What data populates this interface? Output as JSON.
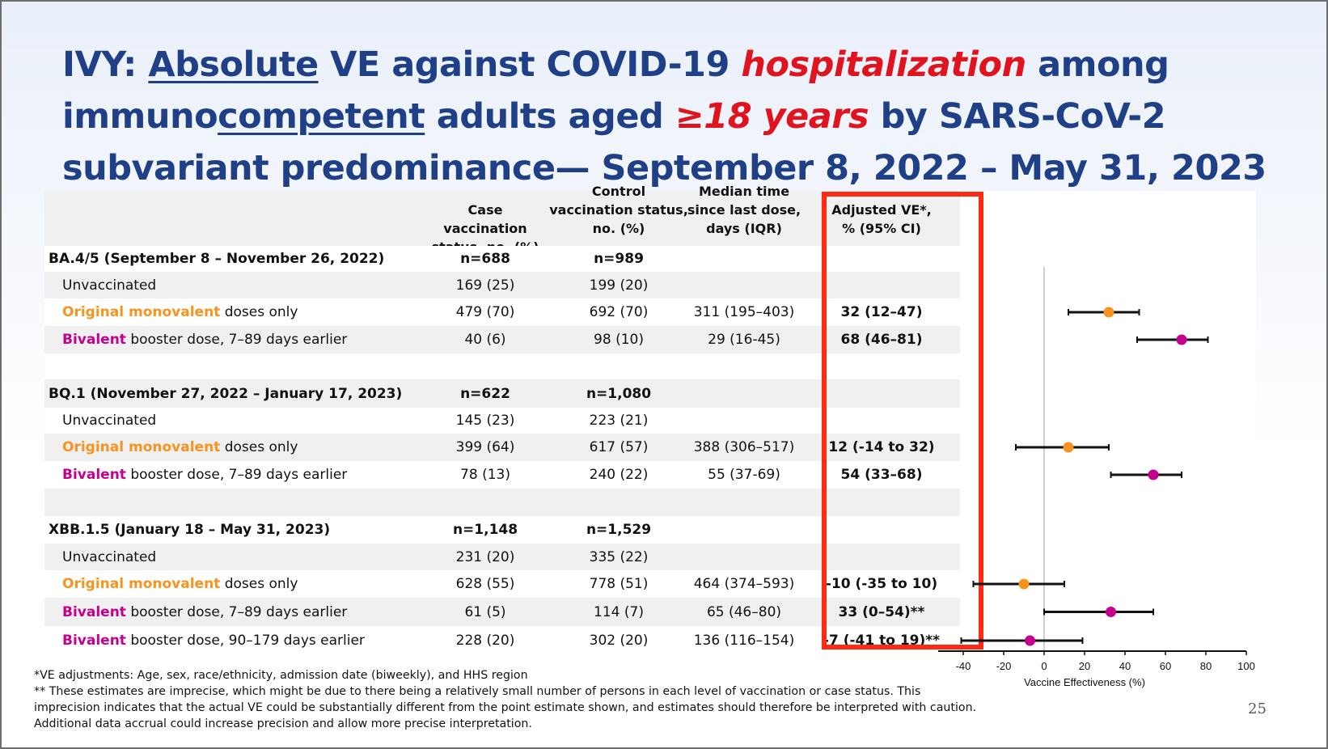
{
  "title": {
    "line1_a": "IVY: ",
    "line1_u": "Absolute",
    "line1_b": " VE against COVID-19 ",
    "line1_r": "hospitalization",
    "line1_c": " among",
    "line2_a": "immuno",
    "line2_u": "competent",
    "line2_b": " adults aged ",
    "line2_r": "≥18 years",
    "line2_c": " by SARS-CoV-2",
    "line3": "subvariant predominance— September 8, 2022 – May 31, 2023"
  },
  "headers": {
    "col1": [
      "Case vaccination",
      "status, no. (%)"
    ],
    "col2": [
      "Control",
      "vaccination status,",
      "no. (%)"
    ],
    "col3": [
      "Median time",
      "since last dose,",
      "days (IQR)"
    ],
    "col4": [
      "Adjusted VE*,",
      "% (95% CI)"
    ]
  },
  "rows": [
    {
      "type": "section",
      "label": "BA.4/5 (September 8 – November 26, 2022)",
      "case": "n=688",
      "control": "n=989",
      "median": "",
      "ve": ""
    },
    {
      "type": "data",
      "label_color": "",
      "label_colored": "",
      "label_rest": "Unvaccinated",
      "case": "169 (25)",
      "control": "199 (20)",
      "median": "",
      "ve": ""
    },
    {
      "type": "data",
      "label_color": "orange",
      "label_colored": "Original monovalent",
      "label_rest": " doses only",
      "case": "479 (70)",
      "control": "692 (70)",
      "median": "311 (195–403)",
      "ve": "32 (12–47)"
    },
    {
      "type": "data",
      "label_color": "magenta",
      "label_colored": "Bivalent",
      "label_rest": " booster dose, 7–89 days earlier",
      "case": "40 (6)",
      "control": "98 (10)",
      "median": "29 (16-45)",
      "ve": "68 (46–81)"
    },
    {
      "type": "blank"
    },
    {
      "type": "section",
      "label": "BQ.1 (November 27, 2022 – January 17, 2023)",
      "case": "n=622",
      "control": "n=1,080",
      "median": "",
      "ve": ""
    },
    {
      "type": "data",
      "label_color": "",
      "label_colored": "",
      "label_rest": "Unvaccinated",
      "case": "145 (23)",
      "control": "223 (21)",
      "median": "",
      "ve": ""
    },
    {
      "type": "data",
      "label_color": "orange",
      "label_colored": "Original monovalent",
      "label_rest": " doses only",
      "case": "399 (64)",
      "control": "617 (57)",
      "median": "388 (306–517)",
      "ve": "12 (-14 to 32)"
    },
    {
      "type": "data",
      "label_color": "magenta",
      "label_colored": "Bivalent",
      "label_rest": " booster dose, 7–89 days earlier",
      "case": "78 (13)",
      "control": "240 (22)",
      "median": "55 (37-69)",
      "ve": "54 (33–68)"
    },
    {
      "type": "blank"
    },
    {
      "type": "section",
      "label": "XBB.1.5 (January 18 – May 31, 2023)",
      "case": "n=1,148",
      "control": "n=1,529",
      "median": "",
      "ve": ""
    },
    {
      "type": "data",
      "label_color": "",
      "label_colored": "",
      "label_rest": "Unvaccinated",
      "case": "231 (20)",
      "control": "335 (22)",
      "median": "",
      "ve": ""
    },
    {
      "type": "data",
      "label_color": "orange",
      "label_colored": "Original monovalent",
      "label_rest": " doses only",
      "case": "628 (55)",
      "control": "778 (51)",
      "median": "464 (374–593)",
      "ve": "-10 (-35 to 10)"
    },
    {
      "type": "data",
      "label_color": "magenta",
      "label_colored": "Bivalent",
      "label_rest": " booster dose, 7–89 days earlier",
      "case": "61 (5)",
      "control": "114 (7)",
      "median": "65 (46–80)",
      "ve": "33 (0–54)**"
    },
    {
      "type": "data",
      "label_color": "magenta",
      "label_colored": "Bivalent",
      "label_rest": " booster dose, 90–179 days earlier",
      "case": "228 (20)",
      "control": "302 (20)",
      "median": "136 (116–154)",
      "ve": "-7 (-41 to 19)**"
    }
  ],
  "colors": {
    "orange": "#f7931e",
    "magenta": "#c5008e",
    "title_blue": "#1f3f86",
    "title_red": "#e0141e",
    "highlight_box": "#ff2a14"
  },
  "chart_data": {
    "type": "scatter",
    "subtype": "forest-plot",
    "xlabel": "Vaccine Effectiveness (%)",
    "xlim": [
      -60,
      100
    ],
    "xticks": [
      -60,
      -40,
      -20,
      0,
      20,
      40,
      60,
      80,
      100
    ],
    "reference_line_x": 0,
    "points": [
      {
        "row": 2,
        "estimate": 32,
        "lower": 12,
        "upper": 47,
        "color": "orange"
      },
      {
        "row": 3,
        "estimate": 68,
        "lower": 46,
        "upper": 81,
        "color": "magenta"
      },
      {
        "row": 7,
        "estimate": 12,
        "lower": -14,
        "upper": 32,
        "color": "orange"
      },
      {
        "row": 8,
        "estimate": 54,
        "lower": 33,
        "upper": 68,
        "color": "magenta"
      },
      {
        "row": 12,
        "estimate": -10,
        "lower": -35,
        "upper": 10,
        "color": "orange"
      },
      {
        "row": 13,
        "estimate": 33,
        "lower": 0,
        "upper": 54,
        "color": "magenta"
      },
      {
        "row": 14,
        "estimate": -7,
        "lower": -41,
        "upper": 19,
        "color": "magenta"
      }
    ]
  },
  "footnotes": [
    "*VE adjustments: Age, sex, race/ethnicity, admission date (biweekly), and HHS region",
    "** These estimates are imprecise, which might be due to there being a relatively small number of persons in each level of vaccination or case status. This",
    "imprecision indicates that the actual VE could be substantially different from the point estimate shown, and estimates should therefore be interpreted with caution.",
    "Additional data accrual could increase precision and allow more precise interpretation."
  ],
  "page_number": "25"
}
